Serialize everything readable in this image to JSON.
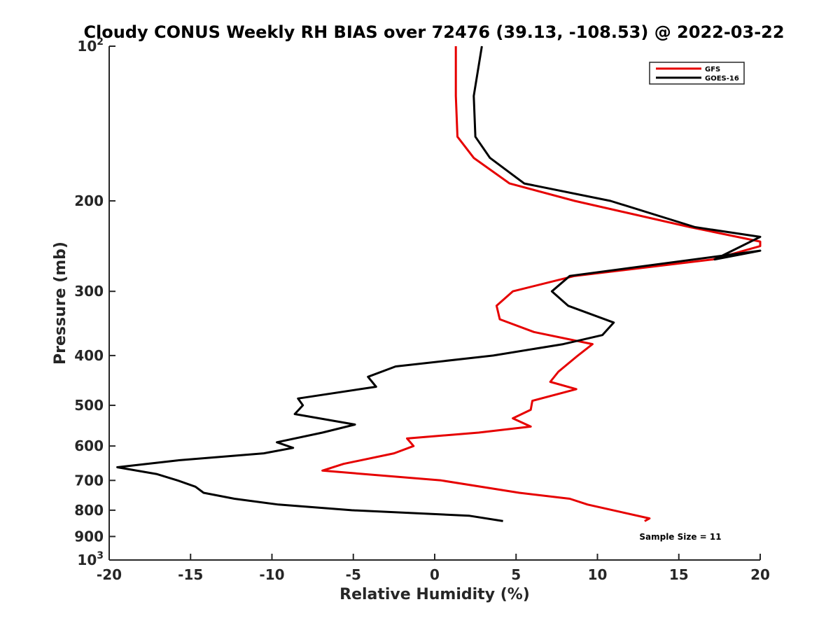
{
  "chart_data": {
    "type": "line",
    "title": "Cloudy CONUS Weekly RH BIAS over 72476 (39.13, -108.53) @ 2022-03-22",
    "xlabel": "Relative Humidity (%)",
    "ylabel": "Pressure (mb)",
    "xlim": [
      -20,
      20
    ],
    "ylim": [
      100,
      1000
    ],
    "y_scale": "log",
    "y_reversed": true,
    "grid": false,
    "legend_position": "top-right",
    "x_ticks": [
      -20,
      -15,
      -10,
      -5,
      0,
      5,
      10,
      15,
      20
    ],
    "x_tick_labels": [
      "-20",
      "-15",
      "-10",
      "-5",
      "0",
      "5",
      "10",
      "15",
      "20"
    ],
    "y_ticks": [
      {
        "value": 100,
        "label": "10",
        "sup": "2"
      },
      {
        "value": 200,
        "label": "200",
        "sup": ""
      },
      {
        "value": 300,
        "label": "300",
        "sup": ""
      },
      {
        "value": 400,
        "label": "400",
        "sup": ""
      },
      {
        "value": 500,
        "label": "500",
        "sup": ""
      },
      {
        "value": 600,
        "label": "600",
        "sup": ""
      },
      {
        "value": 700,
        "label": "700",
        "sup": ""
      },
      {
        "value": 800,
        "label": "800",
        "sup": ""
      },
      {
        "value": 900,
        "label": "900",
        "sup": ""
      },
      {
        "value": 1000,
        "label": "10",
        "sup": "3"
      }
    ],
    "annotation": "Sample Size = 11",
    "series": [
      {
        "name": "GFS",
        "color": "#e60000",
        "points": [
          [
            1.3,
            100
          ],
          [
            1.3,
            125
          ],
          [
            1.4,
            150
          ],
          [
            2.4,
            165
          ],
          [
            4.6,
            185
          ],
          [
            8.6,
            200
          ],
          [
            15.7,
            225
          ],
          [
            20.0,
            240
          ],
          [
            20.0,
            245
          ],
          [
            17.1,
            260
          ],
          [
            8.6,
            280
          ],
          [
            4.8,
            300
          ],
          [
            3.8,
            320
          ],
          [
            4.0,
            340
          ],
          [
            6.1,
            360
          ],
          [
            9.7,
            380
          ],
          [
            8.8,
            400
          ],
          [
            7.6,
            430
          ],
          [
            7.1,
            450
          ],
          [
            8.7,
            465
          ],
          [
            6.0,
            490
          ],
          [
            5.9,
            510
          ],
          [
            4.8,
            530
          ],
          [
            5.9,
            550
          ],
          [
            2.7,
            565
          ],
          [
            -1.7,
            580
          ],
          [
            -1.3,
            600
          ],
          [
            -2.5,
            620
          ],
          [
            -5.6,
            650
          ],
          [
            -6.9,
            670
          ],
          [
            0.4,
            700
          ],
          [
            5.2,
            740
          ],
          [
            8.3,
            760
          ],
          [
            9.4,
            780
          ],
          [
            11.7,
            810
          ],
          [
            13.2,
            830
          ],
          [
            12.9,
            840
          ]
        ]
      },
      {
        "name": "GOES-16",
        "color": "#000000",
        "points": [
          [
            2.9,
            100
          ],
          [
            2.4,
            125
          ],
          [
            2.5,
            150
          ],
          [
            3.4,
            165
          ],
          [
            5.5,
            185
          ],
          [
            10.8,
            200
          ],
          [
            16.0,
            225
          ],
          [
            20.0,
            235
          ],
          [
            17.2,
            260
          ],
          [
            20.0,
            250
          ],
          [
            8.3,
            280
          ],
          [
            7.2,
            300
          ],
          [
            8.2,
            320
          ],
          [
            11.0,
            345
          ],
          [
            10.3,
            365
          ],
          [
            7.9,
            380
          ],
          [
            3.6,
            400
          ],
          [
            -2.4,
            420
          ],
          [
            -4.1,
            440
          ],
          [
            -3.6,
            460
          ],
          [
            -8.4,
            485
          ],
          [
            -8.1,
            500
          ],
          [
            -8.6,
            520
          ],
          [
            -4.9,
            545
          ],
          [
            -6.9,
            565
          ],
          [
            -9.7,
            590
          ],
          [
            -8.7,
            605
          ],
          [
            -10.5,
            620
          ],
          [
            -15.8,
            640
          ],
          [
            -19.5,
            660
          ],
          [
            -17.1,
            680
          ],
          [
            -15.8,
            700
          ],
          [
            -14.7,
            720
          ],
          [
            -14.2,
            740
          ],
          [
            -12.3,
            760
          ],
          [
            -9.6,
            780
          ],
          [
            -5.1,
            800
          ],
          [
            2.1,
            820
          ],
          [
            4.2,
            840
          ]
        ]
      }
    ]
  }
}
